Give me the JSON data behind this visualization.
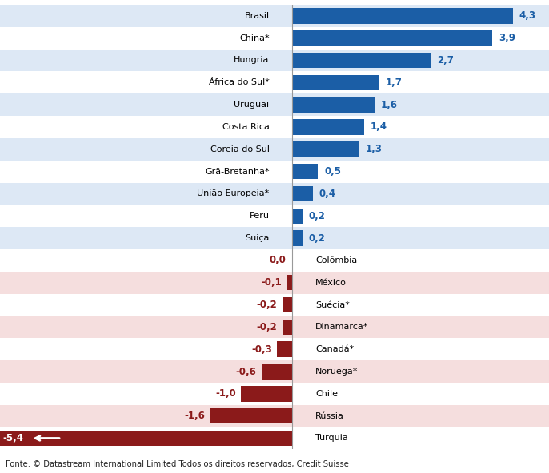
{
  "countries_pos": [
    "Brasil",
    "China*",
    "Hungria",
    "África do Sul*",
    "Uruguai",
    "Costa Rica",
    "Coreia do Sul",
    "Grã-Bretanha*",
    "União Europeia*",
    "Peru",
    "Suiça"
  ],
  "countries_neg": [
    "Colômbia",
    "México",
    "Suécia*",
    "Dinamarca*",
    "Canadá*",
    "Noruega*",
    "Chile",
    "Rússia",
    "Turquia"
  ],
  "values_pos": [
    4.3,
    3.9,
    2.7,
    1.7,
    1.6,
    1.4,
    1.3,
    0.5,
    0.4,
    0.2,
    0.2
  ],
  "values_neg": [
    0.0,
    -0.1,
    -0.2,
    -0.2,
    -0.3,
    -0.6,
    -1.0,
    -1.6,
    -5.4
  ],
  "labels_pos": [
    "4,3",
    "3,9",
    "2,7",
    "1,7",
    "1,6",
    "1,4",
    "1,3",
    "0,5",
    "0,4",
    "0,2",
    "0,2"
  ],
  "labels_neg": [
    "0,0",
    "-0,1",
    "-0,2",
    "-0,2",
    "-0,3",
    "-0,6",
    "-1,0",
    "-1,6",
    "-5,4"
  ],
  "pos_bar_color": "#1B5EA6",
  "neg_bar_color": "#8B1A1A",
  "pos_bg_even": "#dde8f5",
  "pos_bg_odd": "#ffffff",
  "neg_bg_even": "#ffffff",
  "neg_bg_odd": "#f5dede",
  "footer": "Fonte: © Datastream International Limited Todos os direitos reservados, Credit Suisse",
  "value_color_pos": "#1B5EA6",
  "value_color_neg": "#8B1A1A",
  "fig_width": 6.86,
  "fig_height": 5.92,
  "dpi": 100
}
